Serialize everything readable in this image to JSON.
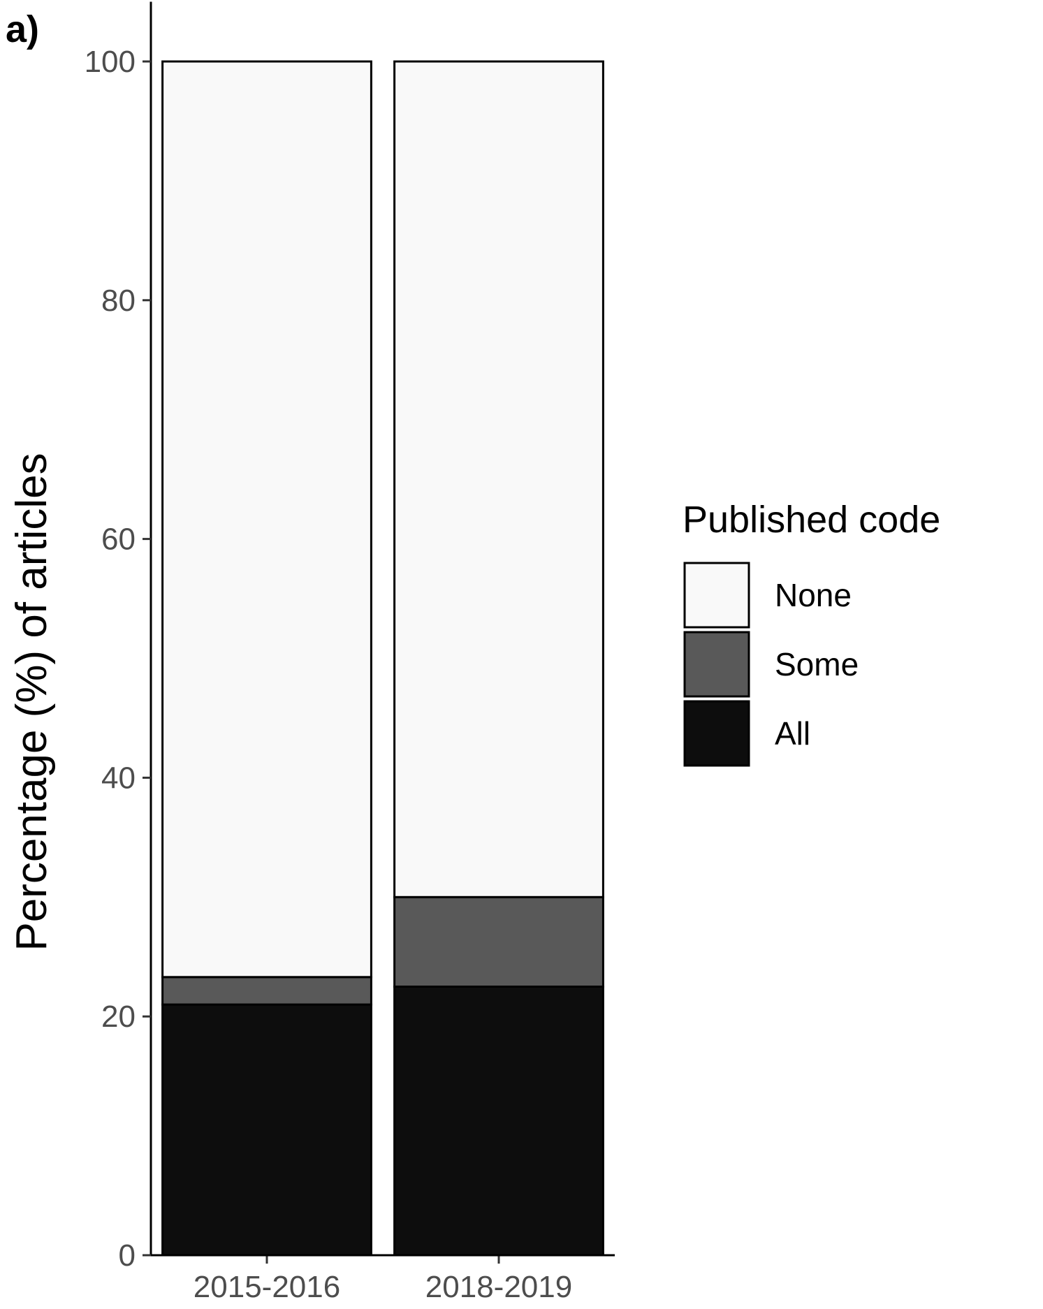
{
  "chart_data": {
    "type": "bar",
    "stacked": true,
    "panel_label": "a)",
    "categories": [
      "2015-2016",
      "2018-2019"
    ],
    "series": [
      {
        "name": "All",
        "values": [
          21.0,
          22.5
        ],
        "color": "#0d0d0d"
      },
      {
        "name": "Some",
        "values": [
          2.3,
          7.5
        ],
        "color": "#595959"
      },
      {
        "name": "None",
        "values": [
          76.7,
          70.0
        ],
        "color": "#f9f9f9"
      }
    ],
    "xlabel": "",
    "ylabel": "Percentage (%) of articles",
    "ylim": [
      0,
      105
    ],
    "yticks": [
      "0",
      "20",
      "40",
      "60",
      "80",
      "100"
    ],
    "grid": false,
    "legend": {
      "title": "Published code",
      "position": "right",
      "entries": [
        "None",
        "Some",
        "All"
      ]
    }
  }
}
